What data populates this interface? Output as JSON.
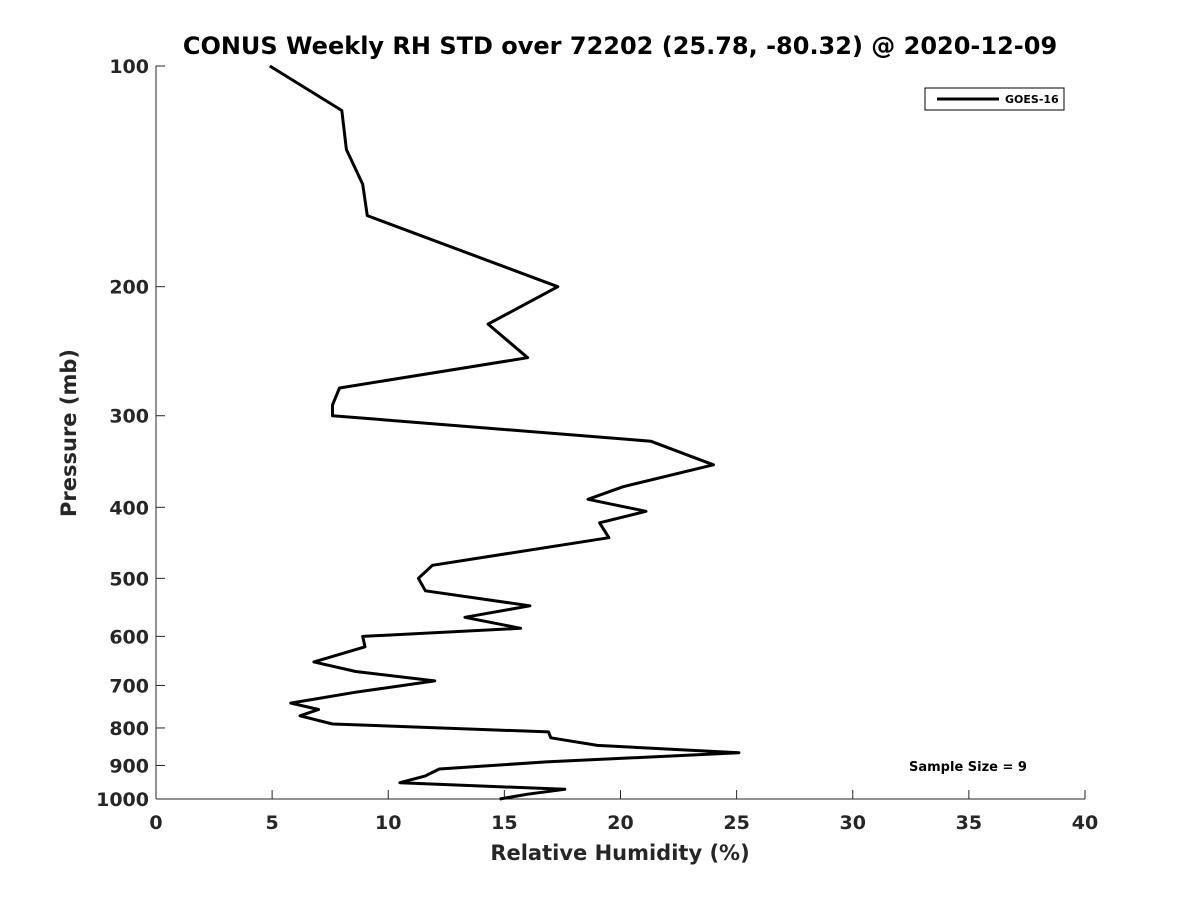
{
  "chart_data": {
    "type": "line",
    "title": "CONUS Weekly RH STD over 72202 (25.78, -80.32) @ 2020-12-09",
    "xlabel": "Relative Humidity (%)",
    "ylabel": "Pressure (mb)",
    "xlim": [
      0,
      40
    ],
    "ylim": [
      100,
      1000
    ],
    "yscale": "log",
    "y_reversed": true,
    "xticks": [
      0,
      5,
      10,
      15,
      20,
      25,
      30,
      35,
      40
    ],
    "yticks": [
      100,
      200,
      300,
      400,
      500,
      600,
      700,
      800,
      900,
      1000
    ],
    "grid": false,
    "legend": {
      "placement": "top-right",
      "entries": [
        "GOES-16"
      ]
    },
    "annotation": "Sample Size = 9",
    "series": [
      {
        "name": "GOES-16",
        "color": "#000000",
        "x": [
          4.9,
          8.0,
          8.2,
          8.9,
          9.1,
          17.3,
          14.3,
          16.0,
          7.9,
          7.6,
          7.6,
          21.3,
          24.0,
          20.1,
          18.6,
          21.1,
          19.1,
          19.5,
          11.9,
          11.3,
          11.6,
          16.1,
          13.3,
          15.7,
          8.9,
          9.0,
          6.8,
          8.6,
          12.0,
          8.6,
          5.8,
          7.0,
          6.2,
          7.6,
          16.9,
          17.0,
          19.0,
          25.1,
          16.8,
          12.2,
          11.6,
          10.5,
          17.6,
          16.0,
          14.8
        ],
        "y": [
          100,
          115,
          130,
          145,
          160,
          200,
          225,
          250,
          275,
          290,
          300,
          325,
          350,
          375,
          390,
          405,
          420,
          440,
          480,
          500,
          520,
          545,
          565,
          585,
          600,
          620,
          650,
          670,
          690,
          715,
          740,
          755,
          770,
          790,
          810,
          825,
          845,
          865,
          890,
          910,
          930,
          950,
          970,
          985,
          1000
        ]
      }
    ]
  }
}
